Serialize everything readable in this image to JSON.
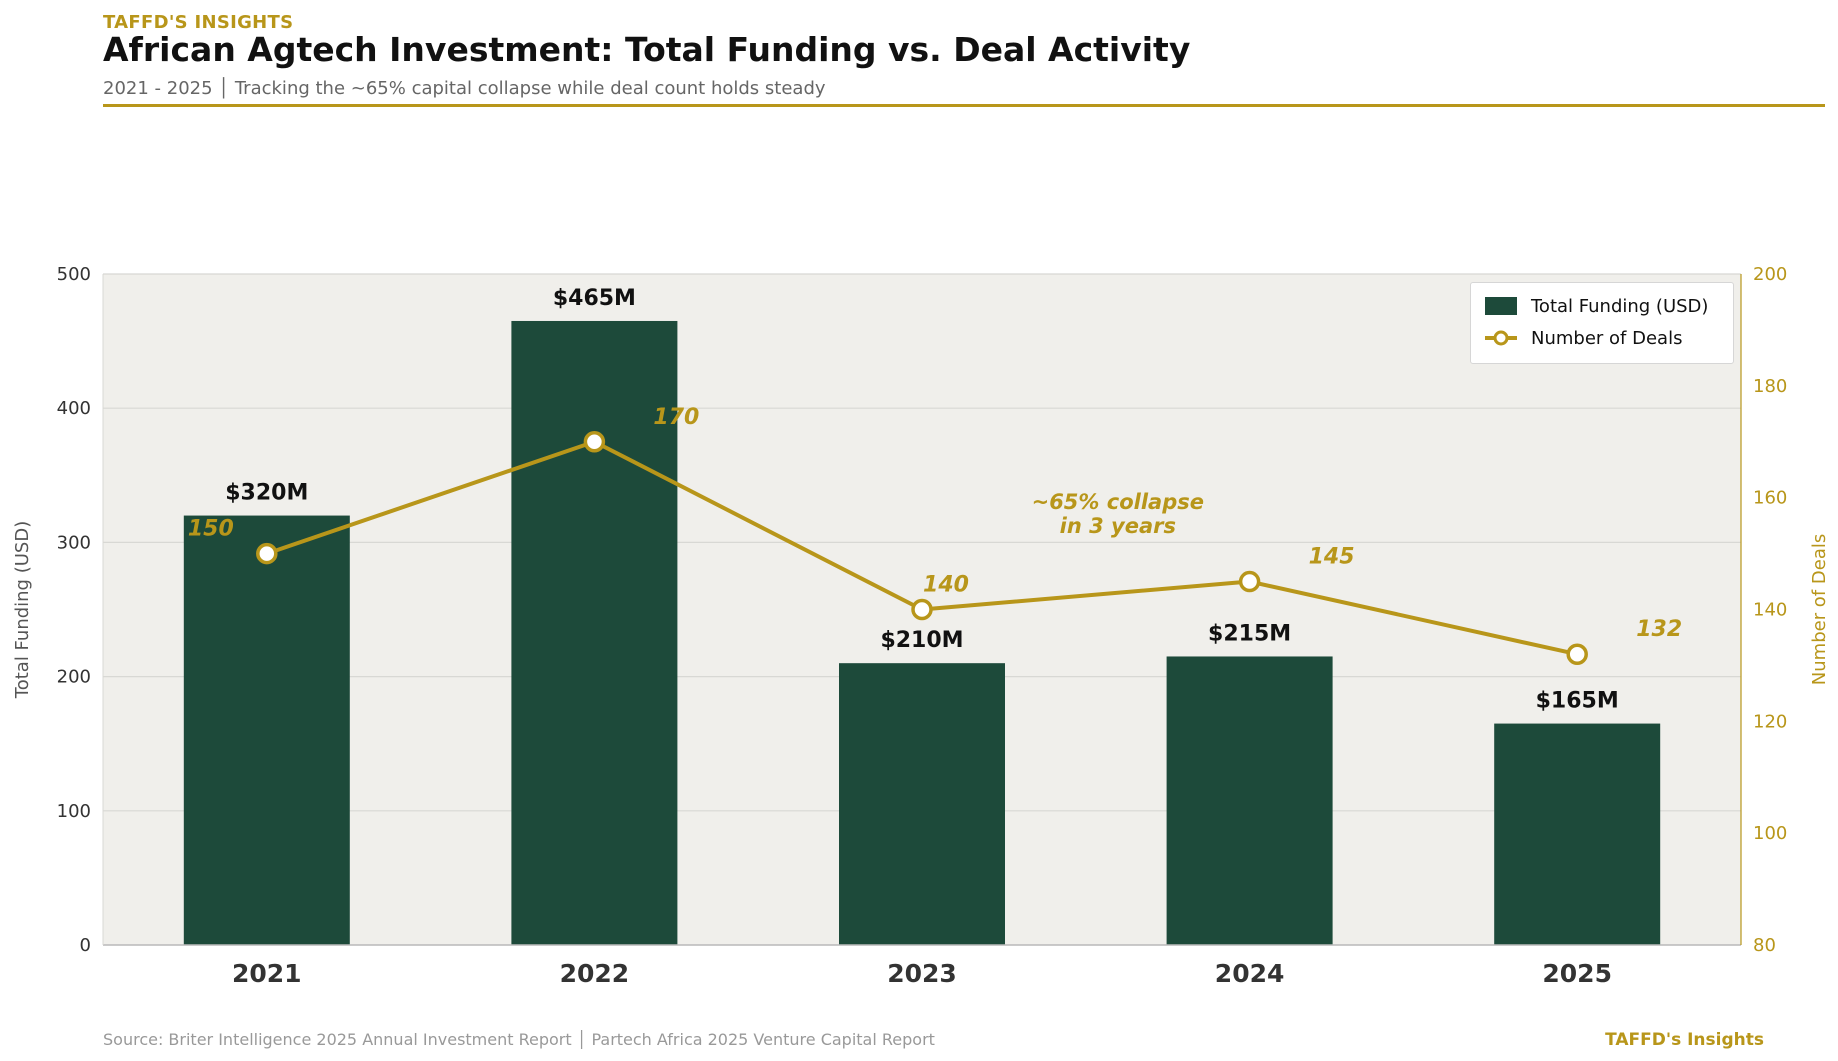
{
  "header": {
    "kicker": "TAFFD'S INSIGHTS",
    "title": "African Agtech Investment: Total Funding vs. Deal Activity",
    "subtitle": "2021 - 2025  │  Tracking the ~65% capital collapse while deal count holds steady"
  },
  "footer": {
    "source": "Source: Briter Intelligence 2025 Annual Investment Report  │  Partech Africa 2025 Venture Capital Report",
    "brand": "TAFFD's Insights"
  },
  "colors": {
    "bar": "#1D4A3A",
    "line": "#B8961A",
    "plot_bg": "#F0EFEB",
    "grid": "#D8D8D4",
    "accent": "#B8961A"
  },
  "chart_data": {
    "type": "bar",
    "categories": [
      "2021",
      "2022",
      "2023",
      "2024",
      "2025"
    ],
    "series": [
      {
        "name": "Total Funding (USD)",
        "type": "bar",
        "axis": "left",
        "values": [
          320,
          465,
          210,
          215,
          165
        ],
        "labels": [
          "$320M",
          "$465M",
          "$210M",
          "$215M",
          "$165M"
        ]
      },
      {
        "name": "Number of Deals",
        "type": "line",
        "axis": "right",
        "values": [
          150,
          170,
          140,
          145,
          132
        ],
        "labels": [
          "150",
          "170",
          "140",
          "145",
          "132"
        ]
      }
    ],
    "ylabel": "Total Funding (USD)",
    "ylim": [
      0,
      500
    ],
    "yticks": [
      0,
      100,
      200,
      300,
      400,
      500
    ],
    "y2label": "Number of Deals",
    "y2lim": [
      80,
      200
    ],
    "y2ticks": [
      80,
      100,
      120,
      140,
      160,
      180,
      200
    ],
    "grid": true,
    "legend": "top-right",
    "annotation": {
      "lines": [
        "~65% collapse",
        "in 3 years"
      ],
      "between": [
        "2023",
        "2024"
      ]
    }
  }
}
